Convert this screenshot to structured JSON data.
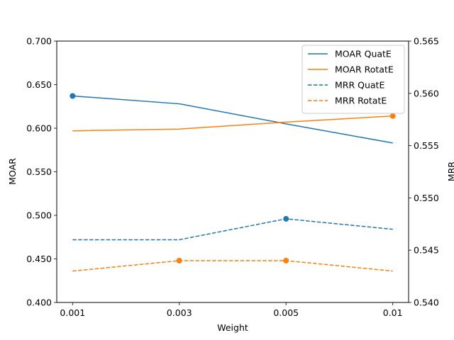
{
  "chart_data": {
    "type": "line",
    "xlabel": "Weight",
    "ylabel_left": "MOAR",
    "ylabel_right": "MRR",
    "categories": [
      "0.001",
      "0.003",
      "0.005",
      "0.01"
    ],
    "left_axis": {
      "ylim": [
        0.4,
        0.7
      ],
      "ticks": [
        "0.400",
        "0.450",
        "0.500",
        "0.550",
        "0.600",
        "0.650",
        "0.700"
      ]
    },
    "right_axis": {
      "ylim": [
        0.54,
        0.565
      ],
      "ticks": [
        "0.540",
        "0.545",
        "0.550",
        "0.555",
        "0.560",
        "0.565"
      ]
    },
    "series": [
      {
        "name": "MOAR QuatE",
        "axis": "left",
        "color": "#1f77b4",
        "style": "solid",
        "values": [
          0.637,
          0.628,
          0.605,
          0.583
        ],
        "markers": [
          0
        ]
      },
      {
        "name": "MOAR RotatE",
        "axis": "left",
        "color": "#ff7f0e",
        "style": "solid",
        "values": [
          0.597,
          0.599,
          0.607,
          0.614
        ],
        "markers": [
          3
        ]
      },
      {
        "name": "MRR QuatE",
        "axis": "right",
        "color": "#1f77b4",
        "style": "dashed",
        "values": [
          0.546,
          0.546,
          0.548,
          0.547
        ],
        "markers": [
          2
        ]
      },
      {
        "name": "MRR RotatE",
        "axis": "right",
        "color": "#ff7f0e",
        "style": "dashed",
        "values": [
          0.543,
          0.544,
          0.544,
          0.543
        ],
        "markers": [
          1,
          2
        ]
      }
    ],
    "legend_position": "top-right",
    "grid": false
  }
}
